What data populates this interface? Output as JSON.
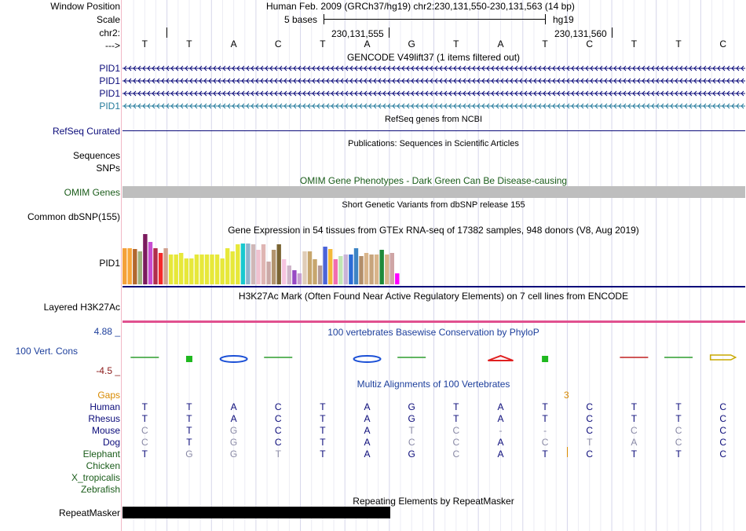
{
  "header": {
    "window_position_label": "Window Position",
    "scale_label": "Scale",
    "chrom_label": "chr2:",
    "strand_label": "--->",
    "position_text": "Human Feb. 2009 (GRCh37/hg19)   chr2:230,131,550-230,131,563 (14 bp)",
    "scale_text": "5 bases",
    "assembly": "hg19",
    "coord_555": "230,131,555",
    "coord_560": "230,131,560",
    "reference_bases": [
      "T",
      "T",
      "A",
      "C",
      "T",
      "A",
      "G",
      "T",
      "A",
      "T",
      "C",
      "T",
      "T",
      "C"
    ]
  },
  "tracks": {
    "gencode": {
      "title": "GENCODE V49lift37 (1 items filtered out)",
      "items": [
        "PID1",
        "PID1",
        "PID1",
        "PID1"
      ]
    },
    "refseq": {
      "label": "RefSeq Curated",
      "title": "RefSeq genes from NCBI"
    },
    "publications": {
      "title": "Publications: Sequences in Scientific Articles",
      "label_sequences": "Sequences",
      "label_snps": "SNPs"
    },
    "omim": {
      "title": "OMIM Gene Phenotypes - Dark Green Can Be Disease-causing",
      "label": "OMIM Genes"
    },
    "dbsnp": {
      "title": "Short Genetic Variants from dbSNP release 155",
      "label": "Common dbSNP(155)"
    },
    "gtex": {
      "title": "Gene Expression in 54 tissues from GTEx RNA-seq of 17382 samples, 948 donors (V8, Aug 2019)",
      "label": "PID1",
      "bar_values": [
        0.72,
        0.72,
        0.7,
        0.66,
        1.0,
        0.85,
        0.72,
        0.62,
        0.72,
        0.6,
        0.6,
        0.62,
        0.52,
        0.52,
        0.6,
        0.6,
        0.6,
        0.6,
        0.6,
        0.52,
        0.72,
        0.65,
        0.8,
        0.82,
        0.82,
        0.8,
        0.68,
        0.8,
        0.46,
        0.68,
        0.8,
        0.5,
        0.38,
        0.28,
        0.22,
        0.66,
        0.66,
        0.5,
        0.38,
        0.75,
        0.7,
        0.5,
        0.56,
        0.6,
        0.6,
        0.72,
        0.56,
        0.62,
        0.6,
        0.6,
        0.68,
        0.6,
        0.62,
        0.22
      ],
      "bar_colors": [
        "#f4a13a",
        "#f9a73a",
        "#b2682e",
        "#9fb17c",
        "#7b1a5e",
        "#c84dd1",
        "#b02d4d",
        "#f42a2a",
        "#cfa18f",
        "#e7e83a",
        "#e7e83a",
        "#e7e83a",
        "#e7e83a",
        "#e7e83a",
        "#e7e83a",
        "#e7e83a",
        "#e7e83a",
        "#e7e83a",
        "#e7e83a",
        "#e7e83a",
        "#e7e83a",
        "#e7e83a",
        "#e7e83a",
        "#19c8cf",
        "#8eb4ce",
        "#cfb7b7",
        "#f0c2d0",
        "#dfb5b3",
        "#cba9a7",
        "#b3956f",
        "#7a6433",
        "#f6c5e0",
        "#cfb5c9",
        "#984ac4",
        "#c7a0d0",
        "#e0cdb8",
        "#c7a66d",
        "#c7a66d",
        "#b49b98",
        "#4b63d9",
        "#f3b93a",
        "#f06db0",
        "#c1e6b4",
        "#c9b3d7",
        "#2b6cd6",
        "#3d84c4",
        "#b28e6a",
        "#d9b58a",
        "#c7a47c",
        "#d9b58a",
        "#1f8a3a",
        "#d9b58a",
        "#cfa5a5",
        "#ff00ff"
      ]
    },
    "h3k27ac": {
      "title": "H3K27Ac Mark (Often Found Near Active Regulatory Elements) on 7 cell lines from ENCODE",
      "label": "Layered H3K27Ac"
    },
    "conservation": {
      "title": "100 vertebrates Basewise Conservation by PhyloP",
      "label": "100 Vert. Cons",
      "ymax": "4.88 _",
      "ymin": "-4.5 _"
    },
    "multiz": {
      "title": "Multiz Alignments of 100 Vertebrates",
      "gaps_label": "Gaps",
      "gap_count": "3",
      "species": [
        {
          "name": "Human",
          "bases": [
            "T",
            "T",
            "A",
            "C",
            "T",
            "A",
            "G",
            "T",
            "A",
            "T",
            "C",
            "T",
            "T",
            "C"
          ],
          "dim": [
            0,
            0,
            0,
            0,
            0,
            0,
            0,
            0,
            0,
            0,
            0,
            0,
            0,
            0
          ]
        },
        {
          "name": "Rhesus",
          "bases": [
            "T",
            "T",
            "A",
            "C",
            "T",
            "A",
            "G",
            "T",
            "A",
            "T",
            "C",
            "T",
            "T",
            "C"
          ],
          "dim": [
            0,
            0,
            0,
            0,
            0,
            0,
            0,
            0,
            0,
            0,
            0,
            0,
            0,
            0
          ]
        },
        {
          "name": "Mouse",
          "bases": [
            "C",
            "T",
            "G",
            "C",
            "T",
            "A",
            "T",
            "C",
            "-",
            "-",
            "C",
            "C",
            "C",
            "C"
          ],
          "dim": [
            1,
            0,
            1,
            0,
            0,
            0,
            1,
            1,
            1,
            1,
            0,
            1,
            1,
            0
          ]
        },
        {
          "name": "Dog",
          "bases": [
            "C",
            "T",
            "G",
            "C",
            "T",
            "A",
            "C",
            "C",
            "A",
            "C",
            "T",
            "A",
            "C",
            "C"
          ],
          "dim": [
            1,
            0,
            1,
            0,
            0,
            0,
            1,
            1,
            0,
            1,
            1,
            1,
            1,
            0
          ]
        },
        {
          "name": "Elephant",
          "bases": [
            "T",
            "G",
            "G",
            "T",
            "T",
            "A",
            "G",
            "C",
            "A",
            "T",
            "C",
            "T",
            "T",
            "C"
          ],
          "dim": [
            0,
            1,
            1,
            1,
            0,
            0,
            0,
            1,
            0,
            0,
            0,
            0,
            0,
            0
          ]
        },
        {
          "name": "Chicken",
          "bases": [],
          "dim": []
        },
        {
          "name": "X_tropicalis",
          "bases": [],
          "dim": []
        },
        {
          "name": "Zebrafish",
          "bases": [],
          "dim": []
        }
      ]
    },
    "repeatmasker": {
      "title": "Repeating Elements by RepeatMasker",
      "label": "RepeatMasker",
      "coverage": 0.43
    }
  },
  "colors": {
    "navy": "#0b0b7a",
    "gencode_blue": "#0b0b7a",
    "gencode_teal": "#237a9b",
    "omim_gray": "#bebebe",
    "h3k27ac_pink": "#e0508f",
    "repeat_black": "#000000",
    "left_border": "#f2b8c6"
  }
}
